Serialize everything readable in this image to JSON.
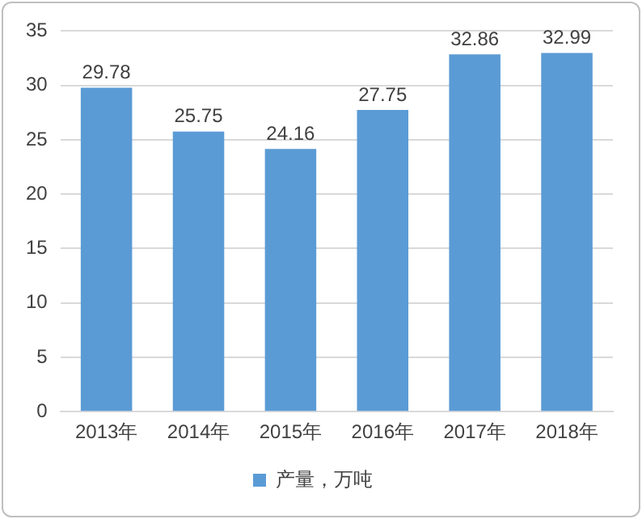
{
  "chart_data": {
    "type": "bar",
    "categories": [
      "2013年",
      "2014年",
      "2015年",
      "2016年",
      "2017年",
      "2018年"
    ],
    "series": [
      {
        "name": "产量，万吨",
        "color": "#5b9bd5",
        "values": [
          29.78,
          25.75,
          24.16,
          27.75,
          32.86,
          32.99
        ]
      }
    ],
    "ylim": [
      0,
      35
    ],
    "yticks": [
      0,
      5,
      10,
      15,
      20,
      25,
      30,
      35
    ],
    "grid": "y",
    "legend": "bottom",
    "data_labels": true
  }
}
